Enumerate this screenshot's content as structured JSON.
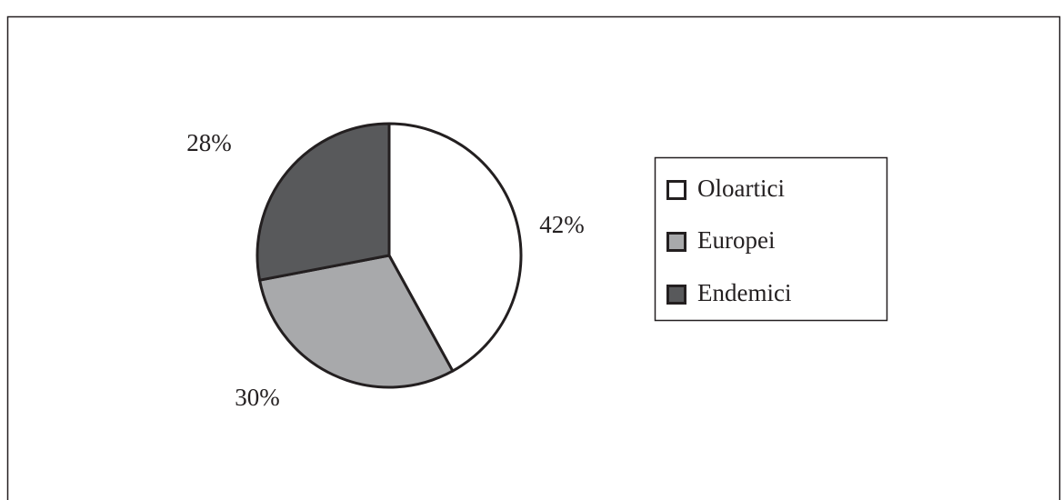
{
  "chart_data": {
    "type": "pie",
    "categories": [
      "Oloartici",
      "Europei",
      "Endemici"
    ],
    "values": [
      42,
      30,
      28
    ],
    "value_labels": [
      "42%",
      "30%",
      "28%"
    ],
    "colors": [
      "#ffffff",
      "#a8a9ab",
      "#58595b"
    ],
    "legend": "right"
  }
}
